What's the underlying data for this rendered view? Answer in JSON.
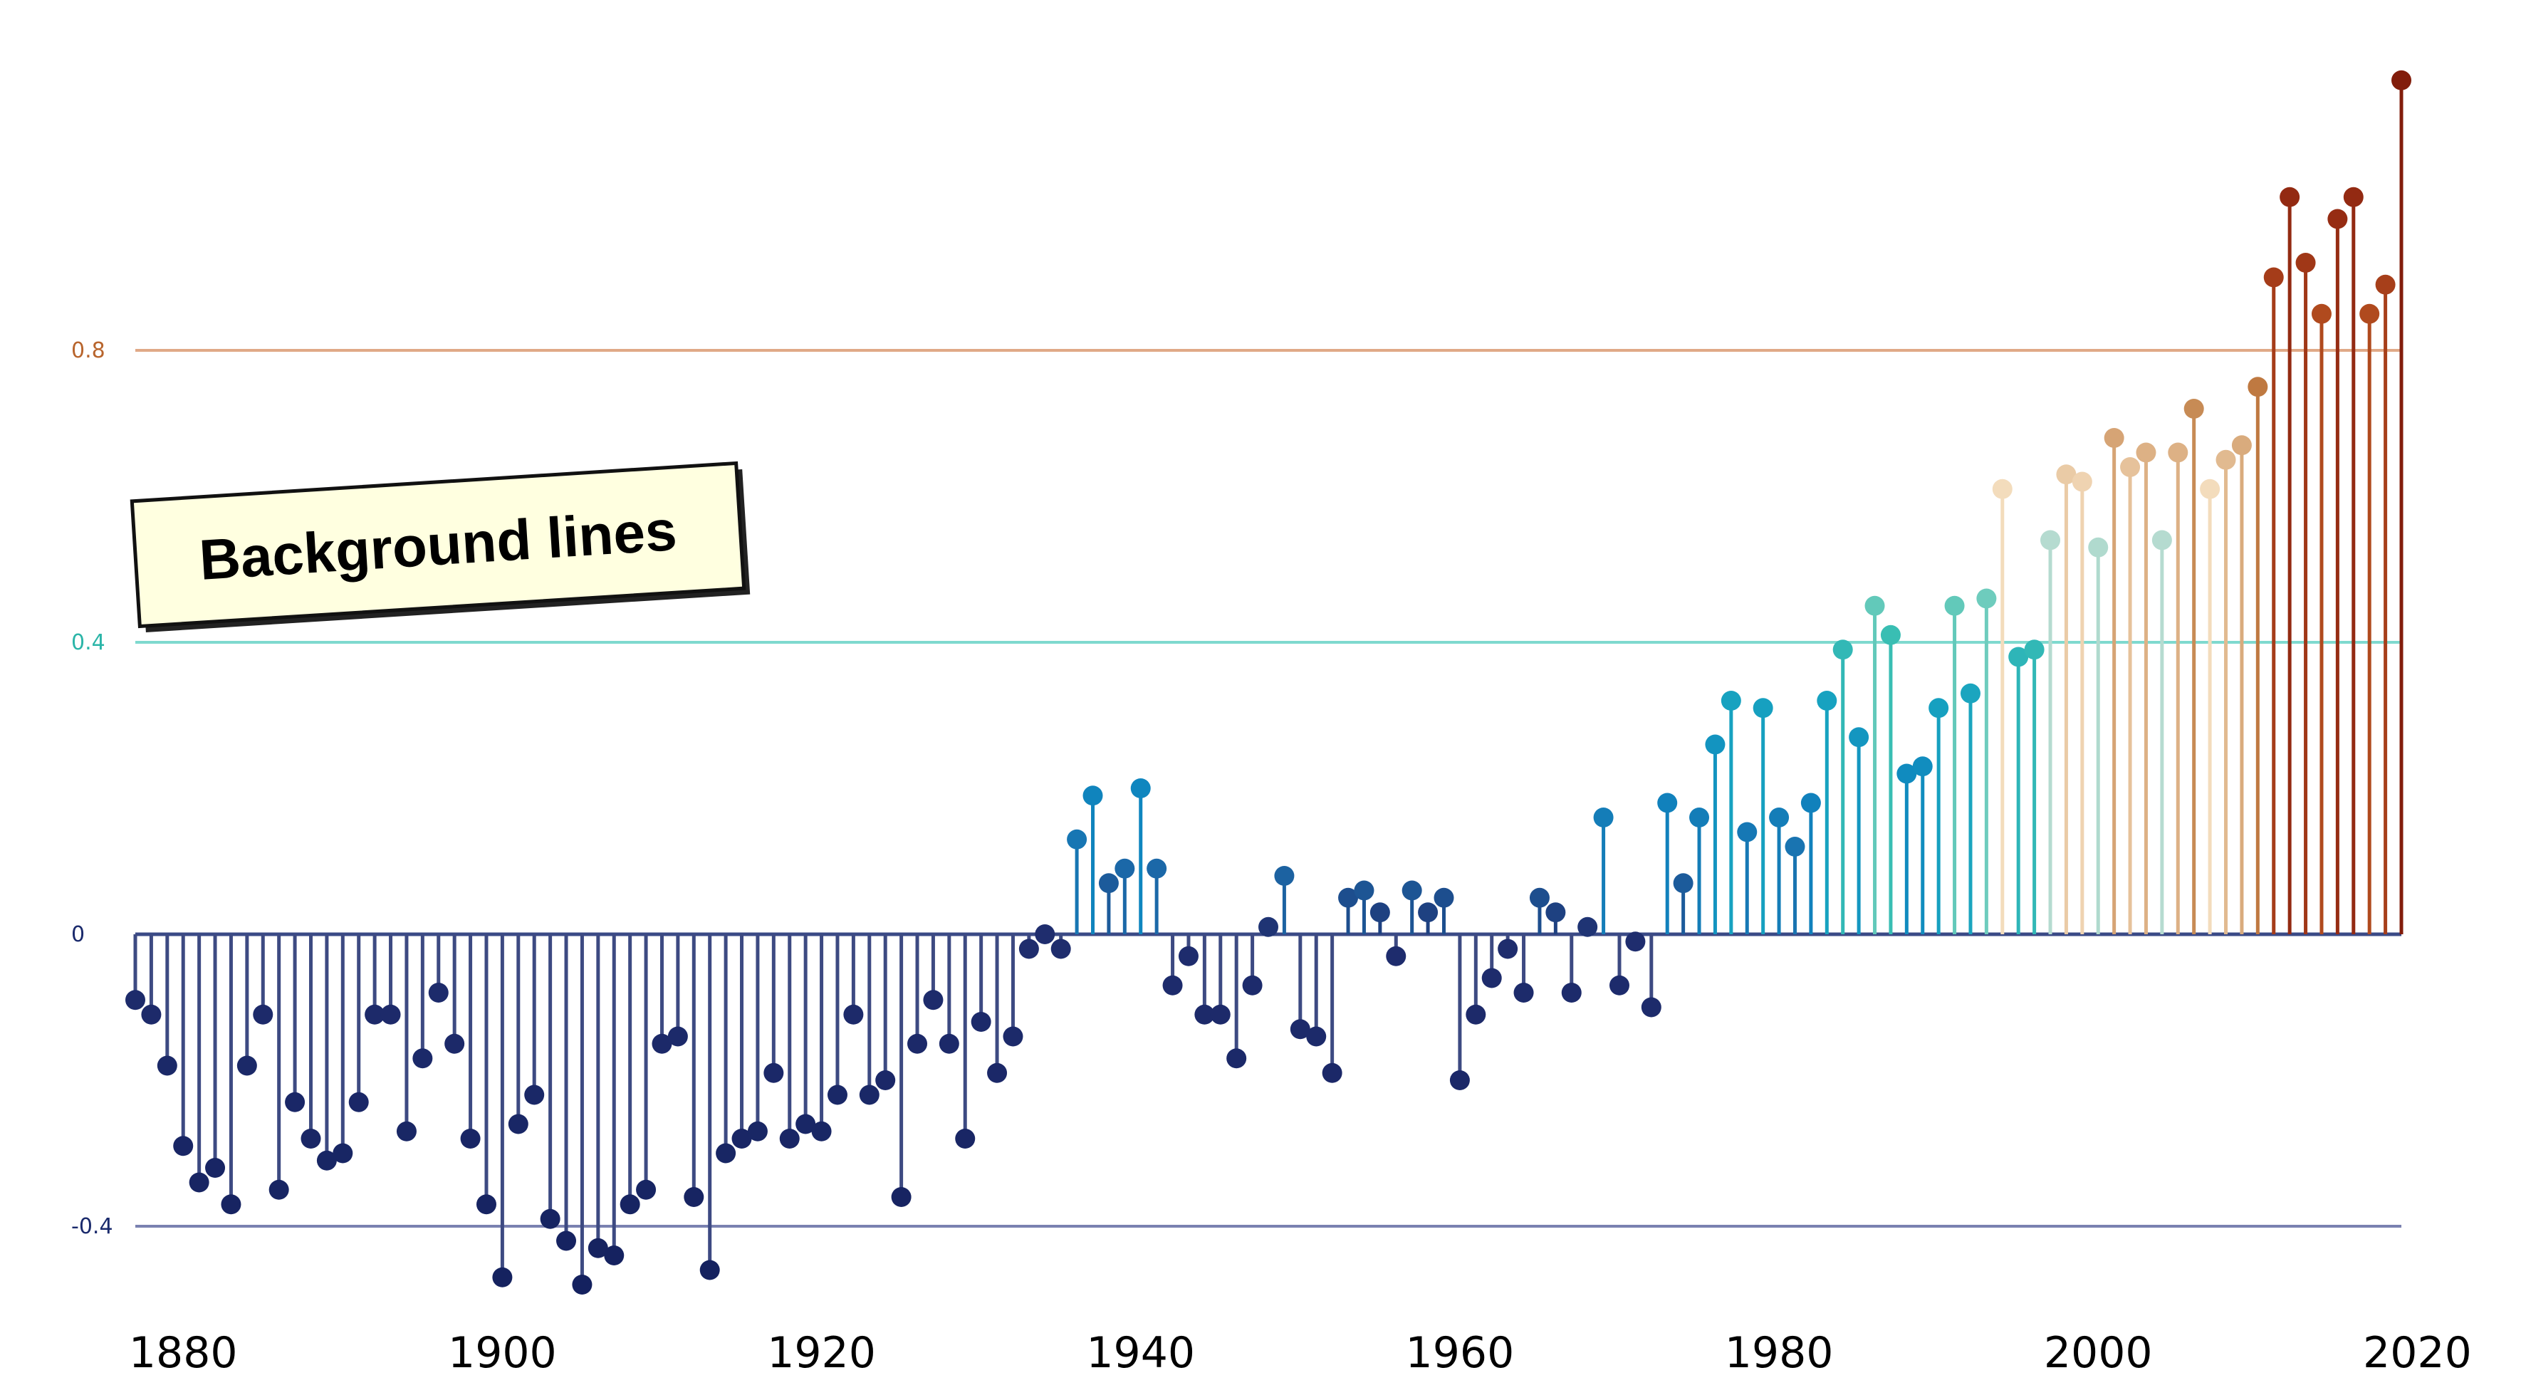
{
  "chart_data": {
    "type": "lollipop",
    "x": [
      1877,
      1878,
      1879,
      1880,
      1881,
      1882,
      1883,
      1884,
      1885,
      1886,
      1887,
      1888,
      1889,
      1890,
      1891,
      1892,
      1893,
      1894,
      1895,
      1896,
      1897,
      1898,
      1899,
      1900,
      1901,
      1902,
      1903,
      1904,
      1905,
      1906,
      1907,
      1908,
      1909,
      1910,
      1911,
      1912,
      1913,
      1914,
      1915,
      1916,
      1917,
      1918,
      1919,
      1920,
      1921,
      1922,
      1923,
      1924,
      1925,
      1926,
      1927,
      1928,
      1929,
      1930,
      1931,
      1932,
      1933,
      1934,
      1935,
      1936,
      1937,
      1938,
      1939,
      1940,
      1941,
      1942,
      1943,
      1944,
      1945,
      1946,
      1947,
      1948,
      1949,
      1950,
      1951,
      1952,
      1953,
      1954,
      1955,
      1956,
      1957,
      1958,
      1959,
      1960,
      1961,
      1962,
      1963,
      1964,
      1965,
      1966,
      1967,
      1968,
      1969,
      1970,
      1971,
      1972,
      1973,
      1974,
      1975,
      1976,
      1977,
      1978,
      1979,
      1980,
      1981,
      1982,
      1983,
      1984,
      1985,
      1986,
      1987,
      1988,
      1989,
      1990,
      1991,
      1992,
      1993,
      1994,
      1995,
      1996,
      1997,
      1998,
      1999,
      2000,
      2001,
      2002,
      2003,
      2004,
      2005,
      2006,
      2007,
      2008,
      2009,
      2010,
      2011,
      2012,
      2013,
      2014,
      2015,
      2016,
      2017,
      2018,
      2019
    ],
    "values": [
      -0.09,
      -0.11,
      -0.18,
      -0.29,
      -0.34,
      -0.32,
      -0.37,
      -0.18,
      -0.11,
      -0.35,
      -0.23,
      -0.28,
      -0.31,
      -0.3,
      -0.23,
      -0.11,
      -0.11,
      -0.27,
      -0.17,
      -0.08,
      -0.15,
      -0.28,
      -0.37,
      -0.47,
      -0.26,
      -0.22,
      -0.39,
      -0.42,
      -0.48,
      -0.43,
      -0.44,
      -0.37,
      -0.35,
      -0.15,
      -0.14,
      -0.36,
      -0.46,
      -0.3,
      -0.28,
      -0.27,
      -0.19,
      -0.28,
      -0.26,
      -0.27,
      -0.22,
      -0.11,
      -0.22,
      -0.2,
      -0.36,
      -0.15,
      -0.09,
      -0.15,
      -0.28,
      -0.12,
      -0.19,
      -0.14,
      -0.02,
      0.0,
      -0.02,
      0.13,
      0.19,
      0.07,
      0.09,
      0.2,
      0.09,
      -0.07,
      -0.03,
      -0.11,
      -0.11,
      -0.17,
      -0.07,
      0.01,
      0.08,
      -0.13,
      -0.14,
      -0.19,
      0.05,
      0.06,
      0.03,
      -0.03,
      0.06,
      0.03,
      0.05,
      -0.2,
      -0.11,
      -0.06,
      -0.02,
      -0.08,
      0.05,
      0.03,
      -0.08,
      0.01,
      0.16,
      -0.07,
      -0.01,
      -0.1,
      0.18,
      0.07,
      0.16,
      0.26,
      0.32,
      0.14,
      0.31,
      0.16,
      0.12,
      0.18,
      0.32,
      0.39,
      0.27,
      0.45,
      0.41,
      0.22,
      0.23,
      0.31,
      0.45,
      0.33,
      0.46,
      0.61,
      0.38,
      0.39,
      0.54,
      0.63,
      0.62,
      0.53,
      0.68,
      0.64,
      0.66,
      0.54,
      0.66,
      0.72,
      0.61,
      0.65,
      0.67,
      0.75,
      0.9,
      1.01,
      0.92,
      0.85,
      0.98,
      1.01,
      0.85,
      0.89,
      1.17
    ],
    "yticks": [
      {
        "value": -0.4,
        "label": "-0.4",
        "color": "#1a2a6c"
      },
      {
        "value": 0,
        "label": "0",
        "color": "#1a2a6c"
      },
      {
        "value": 0.4,
        "label": "0.4",
        "color": "#2bb5a8"
      },
      {
        "value": 0.8,
        "label": "0.8",
        "color": "#b8652d"
      }
    ],
    "background_lines": [
      {
        "value": -0.4,
        "color": "#7a81b0"
      },
      {
        "value": 0.4,
        "color": "#7fd9cf"
      },
      {
        "value": 0.8,
        "color": "#e0a987"
      }
    ],
    "xticks": [
      {
        "value": 1880,
        "label": "1880"
      },
      {
        "value": 1900,
        "label": "1900"
      },
      {
        "value": 1920,
        "label": "1920"
      },
      {
        "value": 1940,
        "label": "1940"
      },
      {
        "value": 1960,
        "label": "1960"
      },
      {
        "value": 1980,
        "label": "1980"
      },
      {
        "value": 2000,
        "label": "2000"
      },
      {
        "value": 2020,
        "label": "2020"
      }
    ],
    "xlim": [
      1873,
      2021
    ],
    "ylim": [
      -0.53,
      1.21
    ],
    "colormap": "diverging navy-blue-teal-cream-orange-brown",
    "annotation": {
      "text": "Background lines"
    }
  }
}
